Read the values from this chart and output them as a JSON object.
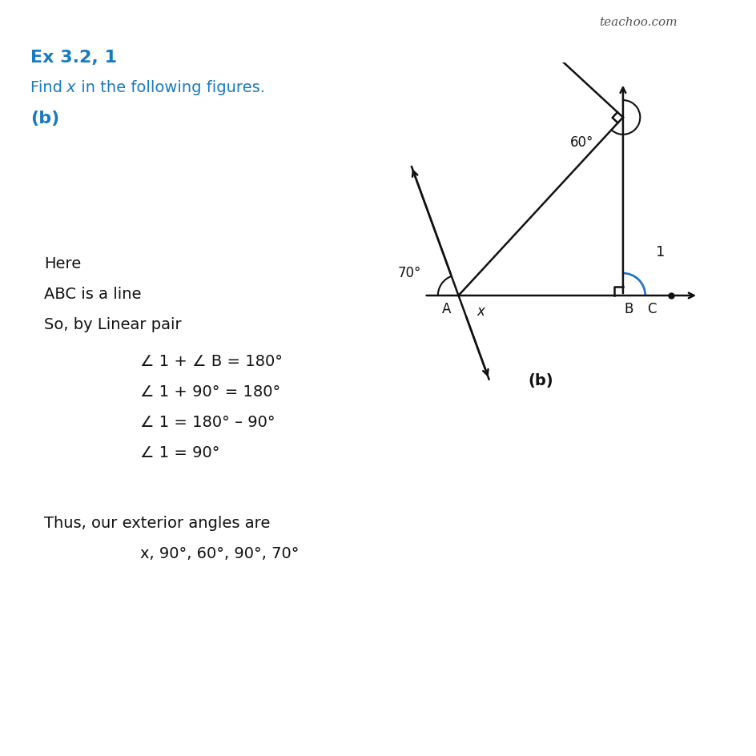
{
  "title": "Ex 3.2, 1",
  "blue_color": "#1a7abf",
  "background": "#ffffff",
  "watermark": "teachoo.com",
  "diagram_label": "(b)",
  "A": [
    0.0,
    0.0
  ],
  "B": [
    2.4,
    0.0
  ],
  "T": [
    2.4,
    2.6
  ],
  "sq_size": 0.13,
  "sq2_size": 0.11,
  "lw": 1.8
}
